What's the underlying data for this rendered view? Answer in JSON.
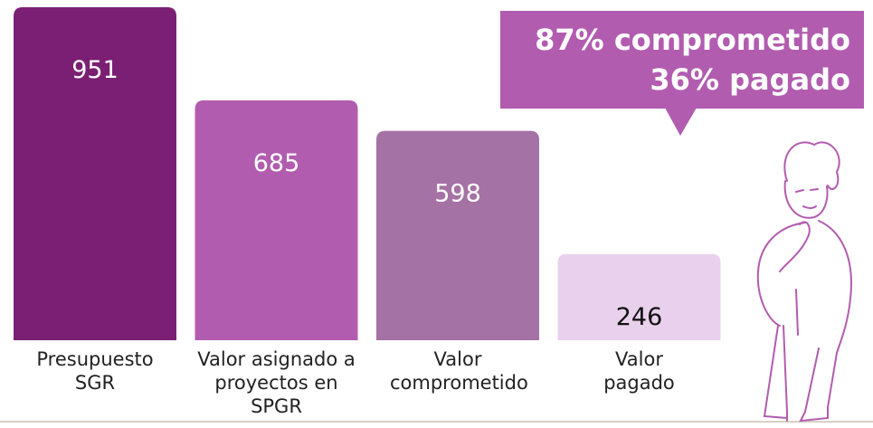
{
  "chart_data": {
    "type": "bar",
    "categories": [
      "Presupuesto SGR",
      "Valor asignado a proyectos en SPGR",
      "Valor comprometido",
      "Valor pagado"
    ],
    "values": [
      951,
      685,
      598,
      246
    ],
    "colors": [
      "#7b1f74",
      "#b25cb0",
      "#a572a5",
      "#e9d0ec"
    ],
    "label_colors": [
      "#ffffff",
      "#ffffff",
      "#ffffff",
      "#111111"
    ],
    "annotations": [
      "87% comprometido",
      "36% pagado"
    ]
  }
}
